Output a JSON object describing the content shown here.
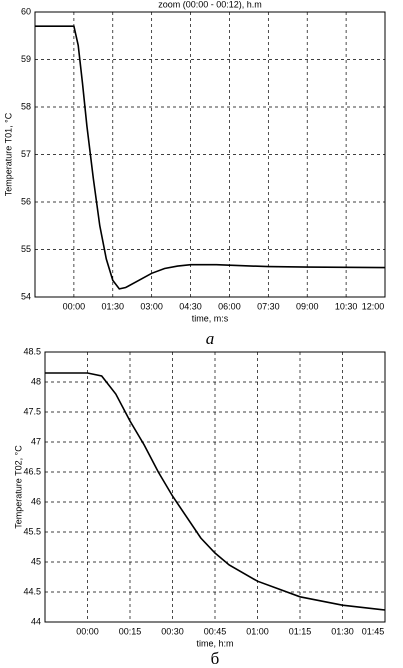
{
  "chart_data": [
    {
      "type": "line",
      "title": "zoom (00:00 - 00:12), h.m",
      "x_label": "time, m:s",
      "y_label": "Temperature T01, °C",
      "caption": "a",
      "x": [
        -90,
        0,
        10,
        20,
        30,
        45,
        60,
        75,
        90,
        105,
        120,
        150,
        180,
        210,
        240,
        270,
        330,
        390,
        450,
        540,
        720
      ],
      "series": [
        {
          "color": "#000000",
          "values": [
            59.7,
            59.7,
            59.3,
            58.5,
            57.6,
            56.5,
            55.5,
            54.8,
            54.35,
            54.17,
            54.2,
            54.35,
            54.5,
            54.6,
            54.65,
            54.68,
            54.68,
            54.66,
            54.64,
            54.63,
            54.62
          ]
        }
      ],
      "xlim": [
        -90,
        720
      ],
      "xticks": [
        {
          "value": 0,
          "label": "00:00"
        },
        {
          "value": 90,
          "label": "01:30"
        },
        {
          "value": 180,
          "label": "03:00"
        },
        {
          "value": 270,
          "label": "04:30"
        },
        {
          "value": 360,
          "label": "06:00"
        },
        {
          "value": 450,
          "label": "07:30"
        },
        {
          "value": 540,
          "label": "09:00"
        },
        {
          "value": 630,
          "label": "10:30"
        },
        {
          "value": 720,
          "label": "12:00"
        }
      ],
      "ylim": [
        54,
        60
      ],
      "yticks": [
        54,
        55,
        56,
        57,
        58,
        59,
        60
      ],
      "grid": true
    },
    {
      "type": "line",
      "x_label": "time, h:m",
      "y_label": "Temperature T02, °C",
      "caption": "б",
      "x": [
        -15,
        0,
        5,
        10,
        15,
        20,
        25,
        30,
        40,
        45,
        50,
        60,
        75,
        90,
        105
      ],
      "series": [
        {
          "color": "#000000",
          "values": [
            48.15,
            48.15,
            48.1,
            47.8,
            47.35,
            46.95,
            46.5,
            46.1,
            45.4,
            45.15,
            44.95,
            44.68,
            44.42,
            44.28,
            44.2
          ]
        }
      ],
      "xlim": [
        -15,
        105
      ],
      "xticks": [
        {
          "value": 0,
          "label": "00:00"
        },
        {
          "value": 15,
          "label": "00:15"
        },
        {
          "value": 30,
          "label": "00:30"
        },
        {
          "value": 45,
          "label": "00:45"
        },
        {
          "value": 60,
          "label": "01:00"
        },
        {
          "value": 75,
          "label": "01:15"
        },
        {
          "value": 90,
          "label": "01:30"
        },
        {
          "value": 105,
          "label": "01:45"
        }
      ],
      "ylim": [
        44,
        48.5
      ],
      "yticks": [
        44,
        44.5,
        45,
        45.5,
        46,
        46.5,
        47,
        47.5,
        48,
        48.5
      ],
      "grid": true
    }
  ]
}
